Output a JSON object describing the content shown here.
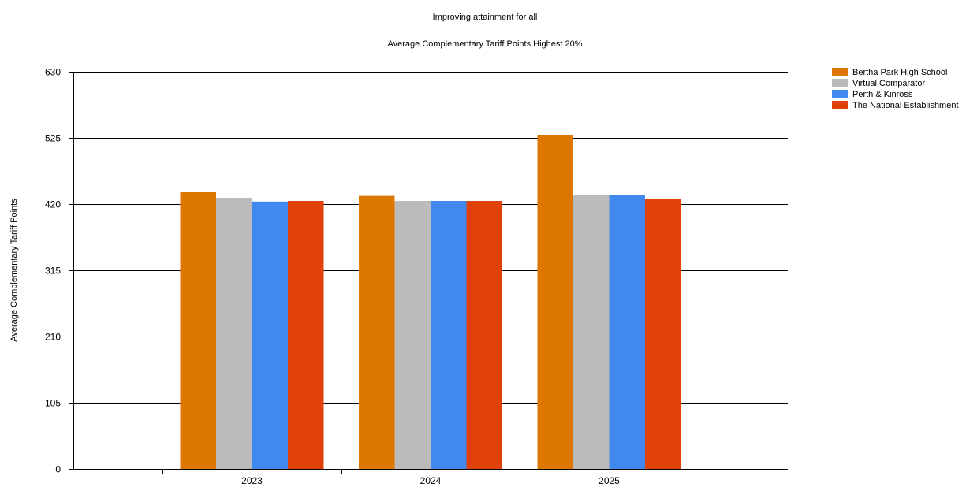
{
  "chart_data": {
    "type": "bar",
    "title": "Improving attainment for all",
    "subtitle": "Average Complementary Tariff Points Highest 20%",
    "xlabel": "",
    "ylabel": "Average Complementary Tariff Points",
    "ylim": [
      0,
      630
    ],
    "yticks": [
      0,
      105,
      210,
      315,
      420,
      525,
      630
    ],
    "grid": true,
    "legend_position": "top-right",
    "categories": [
      "2023",
      "2024",
      "2025"
    ],
    "series": [
      {
        "name": "Bertha Park High School",
        "color": "#DD7700",
        "values": [
          439,
          433,
          530
        ]
      },
      {
        "name": "Virtual Comparator",
        "color": "#BBBBBB",
        "values": [
          430,
          425,
          434
        ]
      },
      {
        "name": "Perth & Kinross",
        "color": "#4189EE",
        "values": [
          424,
          425,
          434
        ]
      },
      {
        "name": "The National Establishment",
        "color": "#E0400A",
        "values": [
          425,
          425,
          428
        ]
      }
    ]
  }
}
